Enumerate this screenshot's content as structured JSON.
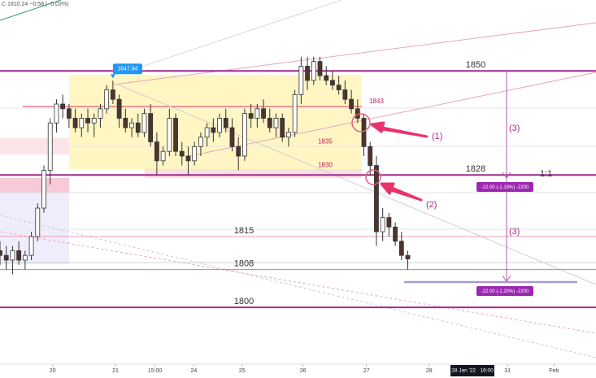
{
  "chart_data": {
    "type": "candlestick",
    "header": "C 1810.24 −0.58 (−0.03%)",
    "ylim": [
      1788,
      1865
    ],
    "xlim": [
      0,
      95
    ],
    "up_color": "#ffffff",
    "down_color": "#4e342e",
    "wick_color": "#333333",
    "candles": [
      {
        "x": 0,
        "o": 1812,
        "h": 1814,
        "l": 1809,
        "c": 1811
      },
      {
        "x": 1,
        "o": 1811,
        "h": 1813,
        "l": 1808,
        "c": 1810
      },
      {
        "x": 2,
        "o": 1810,
        "h": 1813,
        "l": 1807,
        "c": 1812
      },
      {
        "x": 3,
        "o": 1812,
        "h": 1814,
        "l": 1809,
        "c": 1810
      },
      {
        "x": 4,
        "o": 1810,
        "h": 1812,
        "l": 1808,
        "c": 1811
      },
      {
        "x": 5,
        "o": 1811,
        "h": 1816,
        "l": 1810,
        "c": 1815
      },
      {
        "x": 6,
        "o": 1815,
        "h": 1822,
        "l": 1814,
        "c": 1821
      },
      {
        "x": 7,
        "o": 1821,
        "h": 1830,
        "l": 1820,
        "c": 1829
      },
      {
        "x": 8,
        "o": 1829,
        "h": 1840,
        "l": 1826,
        "c": 1839
      },
      {
        "x": 9,
        "o": 1839,
        "h": 1844,
        "l": 1837,
        "c": 1843
      },
      {
        "x": 10,
        "o": 1843,
        "h": 1845,
        "l": 1840,
        "c": 1842
      },
      {
        "x": 11,
        "o": 1842,
        "h": 1843,
        "l": 1838,
        "c": 1840
      },
      {
        "x": 12,
        "o": 1840,
        "h": 1842,
        "l": 1837,
        "c": 1838
      },
      {
        "x": 13,
        "o": 1838,
        "h": 1841,
        "l": 1836,
        "c": 1840
      },
      {
        "x": 14,
        "o": 1840,
        "h": 1842,
        "l": 1837,
        "c": 1839
      },
      {
        "x": 15,
        "o": 1839,
        "h": 1841,
        "l": 1836,
        "c": 1840
      },
      {
        "x": 16,
        "o": 1840,
        "h": 1843,
        "l": 1838,
        "c": 1842
      },
      {
        "x": 17,
        "o": 1842,
        "h": 1847,
        "l": 1841,
        "c": 1846
      },
      {
        "x": 18,
        "o": 1846,
        "h": 1847.94,
        "l": 1843,
        "c": 1844
      },
      {
        "x": 19,
        "o": 1844,
        "h": 1845,
        "l": 1838,
        "c": 1840
      },
      {
        "x": 20,
        "o": 1840,
        "h": 1842,
        "l": 1837,
        "c": 1838
      },
      {
        "x": 21,
        "o": 1838,
        "h": 1840,
        "l": 1836,
        "c": 1839
      },
      {
        "x": 22,
        "o": 1839,
        "h": 1841,
        "l": 1836,
        "c": 1837
      },
      {
        "x": 23,
        "o": 1837,
        "h": 1842,
        "l": 1836,
        "c": 1841
      },
      {
        "x": 24,
        "o": 1841,
        "h": 1843,
        "l": 1834,
        "c": 1835
      },
      {
        "x": 25,
        "o": 1835,
        "h": 1837,
        "l": 1828,
        "c": 1831
      },
      {
        "x": 26,
        "o": 1831,
        "h": 1834,
        "l": 1830,
        "c": 1833
      },
      {
        "x": 27,
        "o": 1833,
        "h": 1842,
        "l": 1832,
        "c": 1840
      },
      {
        "x": 28,
        "o": 1840,
        "h": 1841,
        "l": 1832,
        "c": 1833
      },
      {
        "x": 29,
        "o": 1833,
        "h": 1835,
        "l": 1830,
        "c": 1832
      },
      {
        "x": 30,
        "o": 1832,
        "h": 1834,
        "l": 1828,
        "c": 1831
      },
      {
        "x": 31,
        "o": 1831,
        "h": 1835,
        "l": 1830,
        "c": 1834
      },
      {
        "x": 32,
        "o": 1834,
        "h": 1837,
        "l": 1832,
        "c": 1836
      },
      {
        "x": 33,
        "o": 1836,
        "h": 1839,
        "l": 1834,
        "c": 1838
      },
      {
        "x": 34,
        "o": 1838,
        "h": 1840,
        "l": 1835,
        "c": 1837
      },
      {
        "x": 35,
        "o": 1837,
        "h": 1841,
        "l": 1836,
        "c": 1840
      },
      {
        "x": 36,
        "o": 1840,
        "h": 1842,
        "l": 1837,
        "c": 1838
      },
      {
        "x": 37,
        "o": 1838,
        "h": 1840,
        "l": 1833,
        "c": 1834
      },
      {
        "x": 38,
        "o": 1834,
        "h": 1836,
        "l": 1829,
        "c": 1832
      },
      {
        "x": 39,
        "o": 1832,
        "h": 1842,
        "l": 1831,
        "c": 1841
      },
      {
        "x": 40,
        "o": 1841,
        "h": 1843,
        "l": 1838,
        "c": 1840
      },
      {
        "x": 41,
        "o": 1840,
        "h": 1843,
        "l": 1838,
        "c": 1842
      },
      {
        "x": 42,
        "o": 1842,
        "h": 1844,
        "l": 1839,
        "c": 1840
      },
      {
        "x": 43,
        "o": 1840,
        "h": 1842,
        "l": 1837,
        "c": 1838
      },
      {
        "x": 44,
        "o": 1838,
        "h": 1841,
        "l": 1836,
        "c": 1840
      },
      {
        "x": 45,
        "o": 1840,
        "h": 1841,
        "l": 1835,
        "c": 1836
      },
      {
        "x": 46,
        "o": 1836,
        "h": 1838,
        "l": 1834,
        "c": 1837
      },
      {
        "x": 47,
        "o": 1837,
        "h": 1846,
        "l": 1836,
        "c": 1845
      },
      {
        "x": 48,
        "o": 1845,
        "h": 1853,
        "l": 1843,
        "c": 1851
      },
      {
        "x": 49,
        "o": 1851,
        "h": 1853,
        "l": 1846,
        "c": 1848
      },
      {
        "x": 50,
        "o": 1848,
        "h": 1853,
        "l": 1847,
        "c": 1852
      },
      {
        "x": 51,
        "o": 1852,
        "h": 1853,
        "l": 1848,
        "c": 1849
      },
      {
        "x": 52,
        "o": 1849,
        "h": 1851,
        "l": 1847,
        "c": 1848
      },
      {
        "x": 53,
        "o": 1848,
        "h": 1850,
        "l": 1846,
        "c": 1847
      },
      {
        "x": 54,
        "o": 1847,
        "h": 1849,
        "l": 1845,
        "c": 1846
      },
      {
        "x": 55,
        "o": 1846,
        "h": 1848,
        "l": 1843,
        "c": 1844
      },
      {
        "x": 56,
        "o": 1844,
        "h": 1846,
        "l": 1841,
        "c": 1842
      },
      {
        "x": 57,
        "o": 1842,
        "h": 1844,
        "l": 1839,
        "c": 1840
      },
      {
        "x": 58,
        "o": 1840,
        "h": 1841,
        "l": 1832,
        "c": 1834
      },
      {
        "x": 59,
        "o": 1834,
        "h": 1835,
        "l": 1828,
        "c": 1830
      },
      {
        "x": 60,
        "o": 1830,
        "h": 1832,
        "l": 1813,
        "c": 1816
      },
      {
        "x": 61,
        "o": 1816,
        "h": 1821,
        "l": 1814,
        "c": 1819
      },
      {
        "x": 62,
        "o": 1819,
        "h": 1820,
        "l": 1815,
        "c": 1817
      },
      {
        "x": 63,
        "o": 1817,
        "h": 1818,
        "l": 1813,
        "c": 1814
      },
      {
        "x": 64,
        "o": 1814,
        "h": 1816,
        "l": 1810,
        "c": 1811
      },
      {
        "x": 65,
        "o": 1811,
        "h": 1812,
        "l": 1808,
        "c": 1810.24
      }
    ],
    "levels": [
      {
        "value": 1850,
        "color": "#a02a8f",
        "width": 2
      },
      {
        "value": 1828,
        "color": "#a02a8f",
        "width": 2
      },
      {
        "value": 1815,
        "color": "#e8a0b8",
        "width": 1
      },
      {
        "value": 1808,
        "color": "#e07090",
        "width": 1
      },
      {
        "value": 1800,
        "color": "#a02a8f",
        "width": 2
      }
    ],
    "zone_labels": [
      1843,
      1835,
      1830
    ],
    "high_label": {
      "value": 1847.94,
      "label": "1847.94"
    },
    "xticks": [
      {
        "value": 8.4,
        "label": "20"
      },
      {
        "value": 18.4,
        "label": "21"
      },
      {
        "value": 24.7,
        "label": "15:00"
      },
      {
        "value": 30.9,
        "label": "24"
      },
      {
        "value": 38.6,
        "label": "25"
      },
      {
        "value": 48.3,
        "label": "26"
      },
      {
        "value": 58.4,
        "label": "27"
      },
      {
        "value": 68.4,
        "label": "28"
      },
      {
        "value": 80.9,
        "label": "31"
      },
      {
        "value": 88.3,
        "label": "Feb"
      }
    ],
    "crosshair": {
      "value": 75.3,
      "label": "28 Jan '22   16:00"
    },
    "annotations": {
      "one": "(1)",
      "two": "(2)",
      "three_a": "(3)",
      "three_b": "(3)",
      "ratio": "1:1",
      "measure_a": "-22.00 (-1.19%) -2200",
      "measure_b": "-22.00 (-1.20%) -2200"
    }
  }
}
